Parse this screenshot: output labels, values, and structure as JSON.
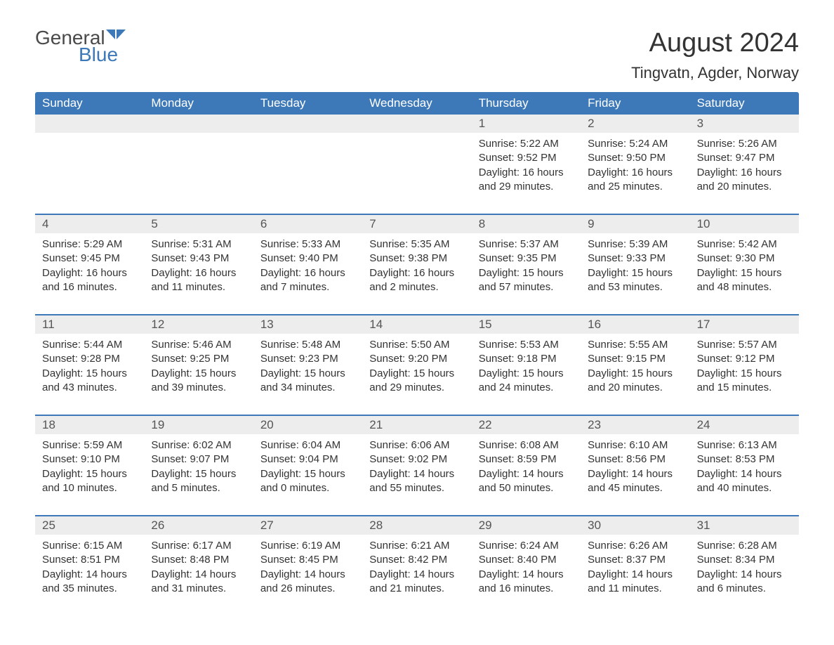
{
  "logo": {
    "general": "General",
    "blue": "Blue"
  },
  "month_title": "August 2024",
  "location": "Tingvatn, Agder, Norway",
  "colors": {
    "header_bg": "#3d79b8",
    "header_fg": "#ffffff",
    "strip_bg": "#ededed",
    "text": "#333333",
    "rule": "#3d79b8"
  },
  "dow": [
    "Sunday",
    "Monday",
    "Tuesday",
    "Wednesday",
    "Thursday",
    "Friday",
    "Saturday"
  ],
  "weeks": [
    [
      null,
      null,
      null,
      null,
      {
        "n": "1",
        "sr": "Sunrise: 5:22 AM",
        "ss": "Sunset: 9:52 PM",
        "d1": "Daylight: 16 hours",
        "d2": "and 29 minutes."
      },
      {
        "n": "2",
        "sr": "Sunrise: 5:24 AM",
        "ss": "Sunset: 9:50 PM",
        "d1": "Daylight: 16 hours",
        "d2": "and 25 minutes."
      },
      {
        "n": "3",
        "sr": "Sunrise: 5:26 AM",
        "ss": "Sunset: 9:47 PM",
        "d1": "Daylight: 16 hours",
        "d2": "and 20 minutes."
      }
    ],
    [
      {
        "n": "4",
        "sr": "Sunrise: 5:29 AM",
        "ss": "Sunset: 9:45 PM",
        "d1": "Daylight: 16 hours",
        "d2": "and 16 minutes."
      },
      {
        "n": "5",
        "sr": "Sunrise: 5:31 AM",
        "ss": "Sunset: 9:43 PM",
        "d1": "Daylight: 16 hours",
        "d2": "and 11 minutes."
      },
      {
        "n": "6",
        "sr": "Sunrise: 5:33 AM",
        "ss": "Sunset: 9:40 PM",
        "d1": "Daylight: 16 hours",
        "d2": "and 7 minutes."
      },
      {
        "n": "7",
        "sr": "Sunrise: 5:35 AM",
        "ss": "Sunset: 9:38 PM",
        "d1": "Daylight: 16 hours",
        "d2": "and 2 minutes."
      },
      {
        "n": "8",
        "sr": "Sunrise: 5:37 AM",
        "ss": "Sunset: 9:35 PM",
        "d1": "Daylight: 15 hours",
        "d2": "and 57 minutes."
      },
      {
        "n": "9",
        "sr": "Sunrise: 5:39 AM",
        "ss": "Sunset: 9:33 PM",
        "d1": "Daylight: 15 hours",
        "d2": "and 53 minutes."
      },
      {
        "n": "10",
        "sr": "Sunrise: 5:42 AM",
        "ss": "Sunset: 9:30 PM",
        "d1": "Daylight: 15 hours",
        "d2": "and 48 minutes."
      }
    ],
    [
      {
        "n": "11",
        "sr": "Sunrise: 5:44 AM",
        "ss": "Sunset: 9:28 PM",
        "d1": "Daylight: 15 hours",
        "d2": "and 43 minutes."
      },
      {
        "n": "12",
        "sr": "Sunrise: 5:46 AM",
        "ss": "Sunset: 9:25 PM",
        "d1": "Daylight: 15 hours",
        "d2": "and 39 minutes."
      },
      {
        "n": "13",
        "sr": "Sunrise: 5:48 AM",
        "ss": "Sunset: 9:23 PM",
        "d1": "Daylight: 15 hours",
        "d2": "and 34 minutes."
      },
      {
        "n": "14",
        "sr": "Sunrise: 5:50 AM",
        "ss": "Sunset: 9:20 PM",
        "d1": "Daylight: 15 hours",
        "d2": "and 29 minutes."
      },
      {
        "n": "15",
        "sr": "Sunrise: 5:53 AM",
        "ss": "Sunset: 9:18 PM",
        "d1": "Daylight: 15 hours",
        "d2": "and 24 minutes."
      },
      {
        "n": "16",
        "sr": "Sunrise: 5:55 AM",
        "ss": "Sunset: 9:15 PM",
        "d1": "Daylight: 15 hours",
        "d2": "and 20 minutes."
      },
      {
        "n": "17",
        "sr": "Sunrise: 5:57 AM",
        "ss": "Sunset: 9:12 PM",
        "d1": "Daylight: 15 hours",
        "d2": "and 15 minutes."
      }
    ],
    [
      {
        "n": "18",
        "sr": "Sunrise: 5:59 AM",
        "ss": "Sunset: 9:10 PM",
        "d1": "Daylight: 15 hours",
        "d2": "and 10 minutes."
      },
      {
        "n": "19",
        "sr": "Sunrise: 6:02 AM",
        "ss": "Sunset: 9:07 PM",
        "d1": "Daylight: 15 hours",
        "d2": "and 5 minutes."
      },
      {
        "n": "20",
        "sr": "Sunrise: 6:04 AM",
        "ss": "Sunset: 9:04 PM",
        "d1": "Daylight: 15 hours",
        "d2": "and 0 minutes."
      },
      {
        "n": "21",
        "sr": "Sunrise: 6:06 AM",
        "ss": "Sunset: 9:02 PM",
        "d1": "Daylight: 14 hours",
        "d2": "and 55 minutes."
      },
      {
        "n": "22",
        "sr": "Sunrise: 6:08 AM",
        "ss": "Sunset: 8:59 PM",
        "d1": "Daylight: 14 hours",
        "d2": "and 50 minutes."
      },
      {
        "n": "23",
        "sr": "Sunrise: 6:10 AM",
        "ss": "Sunset: 8:56 PM",
        "d1": "Daylight: 14 hours",
        "d2": "and 45 minutes."
      },
      {
        "n": "24",
        "sr": "Sunrise: 6:13 AM",
        "ss": "Sunset: 8:53 PM",
        "d1": "Daylight: 14 hours",
        "d2": "and 40 minutes."
      }
    ],
    [
      {
        "n": "25",
        "sr": "Sunrise: 6:15 AM",
        "ss": "Sunset: 8:51 PM",
        "d1": "Daylight: 14 hours",
        "d2": "and 35 minutes."
      },
      {
        "n": "26",
        "sr": "Sunrise: 6:17 AM",
        "ss": "Sunset: 8:48 PM",
        "d1": "Daylight: 14 hours",
        "d2": "and 31 minutes."
      },
      {
        "n": "27",
        "sr": "Sunrise: 6:19 AM",
        "ss": "Sunset: 8:45 PM",
        "d1": "Daylight: 14 hours",
        "d2": "and 26 minutes."
      },
      {
        "n": "28",
        "sr": "Sunrise: 6:21 AM",
        "ss": "Sunset: 8:42 PM",
        "d1": "Daylight: 14 hours",
        "d2": "and 21 minutes."
      },
      {
        "n": "29",
        "sr": "Sunrise: 6:24 AM",
        "ss": "Sunset: 8:40 PM",
        "d1": "Daylight: 14 hours",
        "d2": "and 16 minutes."
      },
      {
        "n": "30",
        "sr": "Sunrise: 6:26 AM",
        "ss": "Sunset: 8:37 PM",
        "d1": "Daylight: 14 hours",
        "d2": "and 11 minutes."
      },
      {
        "n": "31",
        "sr": "Sunrise: 6:28 AM",
        "ss": "Sunset: 8:34 PM",
        "d1": "Daylight: 14 hours",
        "d2": "and 6 minutes."
      }
    ]
  ]
}
